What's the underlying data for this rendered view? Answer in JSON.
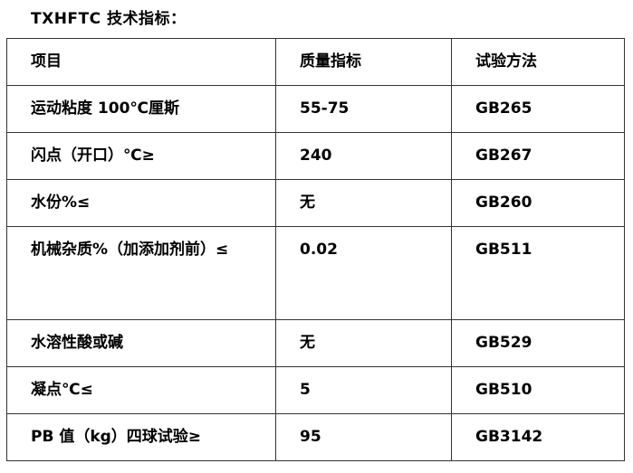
{
  "title": "TXHFTC 技术指标：",
  "table": {
    "headers": [
      "项目",
      "质量指标",
      "试验方法"
    ],
    "rows": [
      [
        "运动粘度 100℃厘斯",
        "55-75",
        "GB265"
      ],
      [
        "闪点（开口）℃≥",
        "240",
        "GB267"
      ],
      [
        "水份%≤",
        "无",
        "GB260"
      ],
      [
        "机械杂质%（加添加剂前）≤",
        "0.02",
        "GB511"
      ],
      [
        "水溶性酸或碱",
        "无",
        "GB529"
      ],
      [
        "凝点℃≤",
        "5",
        "GB510"
      ],
      [
        "PB 值（kg）四球试验≥",
        "95",
        "GB3142"
      ]
    ]
  }
}
